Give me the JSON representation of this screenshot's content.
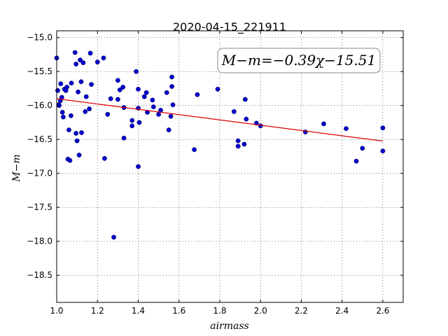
{
  "chart_data": {
    "type": "scatter",
    "title": "2020-04-15_221911",
    "xlabel": "airmass",
    "ylabel": "M−m",
    "xlim": [
      1.0,
      2.7
    ],
    "ylim": [
      -18.9,
      -14.9
    ],
    "y_inverted": true,
    "grid": true,
    "xticks": [
      "1.0",
      "1.2",
      "1.4",
      "1.6",
      "1.8",
      "2.0",
      "2.2",
      "2.4",
      "2.6"
    ],
    "yticks": [
      "−15.0",
      "−15.5",
      "−16.0",
      "−16.5",
      "−17.0",
      "−17.5",
      "−18.0",
      "−18.5"
    ],
    "annotation": "M−m=−0.39χ−15.51",
    "fit": {
      "slope": -0.39,
      "intercept": -15.51,
      "x_range": [
        1.0,
        2.6
      ],
      "color": "#dd0000"
    },
    "point_color": "#0000cc",
    "points": [
      [
        1.0,
        -15.3
      ],
      [
        1.005,
        -15.78
      ],
      [
        1.01,
        -15.99
      ],
      [
        1.012,
        -16.0
      ],
      [
        1.018,
        -15.93
      ],
      [
        1.02,
        -15.68
      ],
      [
        1.025,
        -15.88
      ],
      [
        1.028,
        -16.1
      ],
      [
        1.032,
        -16.17
      ],
      [
        1.038,
        -15.76
      ],
      [
        1.045,
        -15.78
      ],
      [
        1.05,
        -15.73
      ],
      [
        1.055,
        -16.79
      ],
      [
        1.06,
        -16.36
      ],
      [
        1.065,
        -16.81
      ],
      [
        1.07,
        -16.15
      ],
      [
        1.072,
        -15.67
      ],
      [
        1.09,
        -15.22
      ],
      [
        1.095,
        -15.39
      ],
      [
        1.095,
        -16.41
      ],
      [
        1.1,
        -16.52
      ],
      [
        1.105,
        -15.8
      ],
      [
        1.11,
        -16.73
      ],
      [
        1.115,
        -15.33
      ],
      [
        1.12,
        -15.65
      ],
      [
        1.122,
        -16.4
      ],
      [
        1.13,
        -15.37
      ],
      [
        1.14,
        -16.09
      ],
      [
        1.145,
        -15.87
      ],
      [
        1.16,
        -16.05
      ],
      [
        1.165,
        -15.23
      ],
      [
        1.17,
        -15.69
      ],
      [
        1.2,
        -15.36
      ],
      [
        1.23,
        -15.3
      ],
      [
        1.235,
        -16.78
      ],
      [
        1.25,
        -16.13
      ],
      [
        1.265,
        -15.9
      ],
      [
        1.28,
        -17.94
      ],
      [
        1.3,
        -15.91
      ],
      [
        1.3,
        -15.63
      ],
      [
        1.31,
        -15.77
      ],
      [
        1.325,
        -15.73
      ],
      [
        1.33,
        -16.03
      ],
      [
        1.33,
        -16.48
      ],
      [
        1.37,
        -16.22
      ],
      [
        1.37,
        -16.3
      ],
      [
        1.39,
        -15.5
      ],
      [
        1.4,
        -15.76
      ],
      [
        1.4,
        -16.04
      ],
      [
        1.4,
        -16.9
      ],
      [
        1.405,
        -16.25
      ],
      [
        1.43,
        -15.87
      ],
      [
        1.44,
        -15.81
      ],
      [
        1.445,
        -16.1
      ],
      [
        1.47,
        -15.92
      ],
      [
        1.475,
        -16.02
      ],
      [
        1.5,
        -16.13
      ],
      [
        1.51,
        -16.07
      ],
      [
        1.54,
        -15.81
      ],
      [
        1.55,
        -16.36
      ],
      [
        1.56,
        -16.16
      ],
      [
        1.565,
        -15.72
      ],
      [
        1.565,
        -15.58
      ],
      [
        1.57,
        -15.99
      ],
      [
        1.675,
        -16.65
      ],
      [
        1.69,
        -15.84
      ],
      [
        1.79,
        -15.76
      ],
      [
        1.87,
        -16.09
      ],
      [
        1.89,
        -16.52
      ],
      [
        1.89,
        -16.6
      ],
      [
        1.92,
        -16.57
      ],
      [
        1.925,
        -15.91
      ],
      [
        1.93,
        -16.2
      ],
      [
        1.98,
        -16.26
      ],
      [
        2.0,
        -16.3
      ],
      [
        2.22,
        -16.39
      ],
      [
        2.31,
        -16.27
      ],
      [
        2.42,
        -16.34
      ],
      [
        2.47,
        -16.82
      ],
      [
        2.5,
        -16.63
      ],
      [
        2.6,
        -16.33
      ],
      [
        2.6,
        -16.67
      ]
    ]
  }
}
